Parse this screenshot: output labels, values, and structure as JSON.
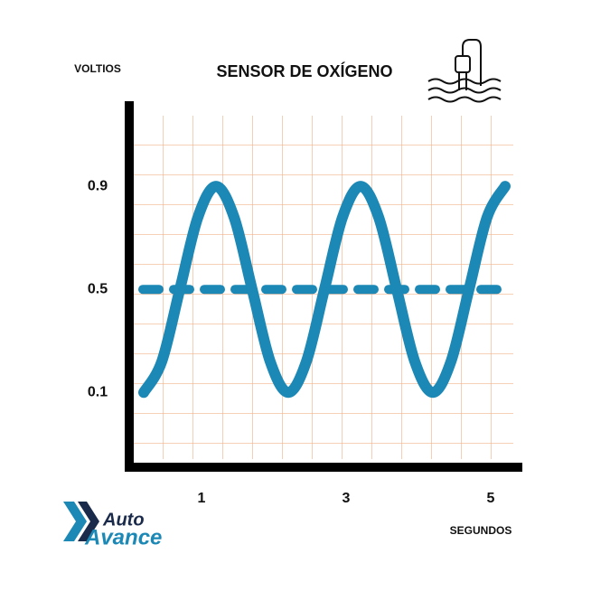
{
  "chart_data": {
    "type": "line",
    "title": "SENSOR DE OXÍGENO",
    "y_label": "VOLTIOS",
    "x_label": "SEGUNDOS",
    "x": [
      0.2,
      0.45,
      0.7,
      0.95,
      1.2,
      1.45,
      1.7,
      1.95,
      2.2,
      2.45,
      2.7,
      2.95,
      3.2,
      3.45,
      3.7,
      3.95,
      4.2,
      4.45,
      4.7,
      4.95,
      5.2
    ],
    "series": [
      {
        "color": "#1b88b6",
        "values": [
          0.1,
          0.22,
          0.5,
          0.78,
          0.9,
          0.78,
          0.5,
          0.22,
          0.1,
          0.22,
          0.5,
          0.78,
          0.9,
          0.78,
          0.5,
          0.22,
          0.1,
          0.22,
          0.5,
          0.78,
          0.9
        ]
      }
    ],
    "reference_line": {
      "value": 0.5,
      "color": "#1b88b6"
    },
    "xlim": [
      0,
      5.4
    ],
    "xticks": [
      1,
      3,
      5
    ],
    "ylim": [
      -0.19,
      1.23
    ],
    "yticks": [
      0.1,
      0.5,
      0.9
    ],
    "grid": true
  },
  "logo": {
    "line1": "Auto",
    "line2": "Avance"
  }
}
